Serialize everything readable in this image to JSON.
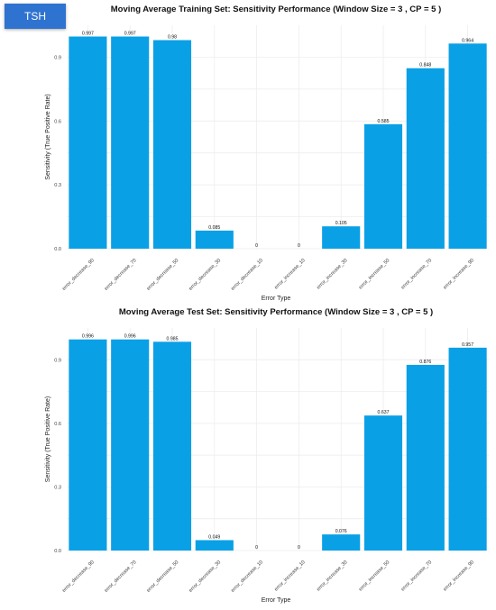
{
  "badge": "TSH",
  "colors": {
    "bar": "#0aa0e6",
    "grid": "#ebebeb"
  },
  "chart_data": [
    {
      "type": "bar",
      "title": "Moving Average Training Set: Sensitivity Performance (Window Size = 3 , CP = 5 )",
      "xlabel": "Error Type",
      "ylabel": "Sensitivity (True Positive Rate)",
      "ylim": [
        0,
        1.05
      ],
      "yticks": [
        0.0,
        0.3,
        0.6,
        0.9
      ],
      "ytick_labels": [
        "0.0",
        "0.3",
        "0.6",
        "0.9"
      ],
      "grid": true,
      "categories": [
        "error_decrease_90",
        "error_decrease_70",
        "error_decrease_50",
        "error_decrease_30",
        "error_decrease_10",
        "error_increase_10",
        "error_increase_30",
        "error_increase_50",
        "error_increase_70",
        "error_increase_90"
      ],
      "values": [
        0.997,
        0.997,
        0.98,
        0.085,
        0,
        0,
        0.105,
        0.585,
        0.848,
        0.964
      ],
      "value_labels": [
        "0.997",
        "0.997",
        "0.98",
        "0.085",
        "0",
        "0",
        "0.105",
        "0.585",
        "0.848",
        "0.964"
      ]
    },
    {
      "type": "bar",
      "title": "Moving Average Test Set: Sensitivity Performance (Window Size = 3 , CP = 5 )",
      "xlabel": "Error Type",
      "ylabel": "Sensitivity (True Positive Rate)",
      "ylim": [
        0,
        1.05
      ],
      "yticks": [
        0.0,
        0.3,
        0.6,
        0.9
      ],
      "ytick_labels": [
        "0.0",
        "0.3",
        "0.6",
        "0.9"
      ],
      "grid": true,
      "categories": [
        "error_decrease_90",
        "error_decrease_70",
        "error_decrease_50",
        "error_decrease_30",
        "error_decrease_10",
        "error_increase_10",
        "error_increase_30",
        "error_increase_50",
        "error_increase_70",
        "error_increase_90"
      ],
      "values": [
        0.996,
        0.996,
        0.985,
        0.049,
        0,
        0,
        0.076,
        0.637,
        0.876,
        0.957
      ],
      "value_labels": [
        "0.996",
        "0.996",
        "0.985",
        "0.049",
        "0",
        "0",
        "0.076",
        "0.637",
        "0.876",
        "0.957"
      ]
    }
  ]
}
